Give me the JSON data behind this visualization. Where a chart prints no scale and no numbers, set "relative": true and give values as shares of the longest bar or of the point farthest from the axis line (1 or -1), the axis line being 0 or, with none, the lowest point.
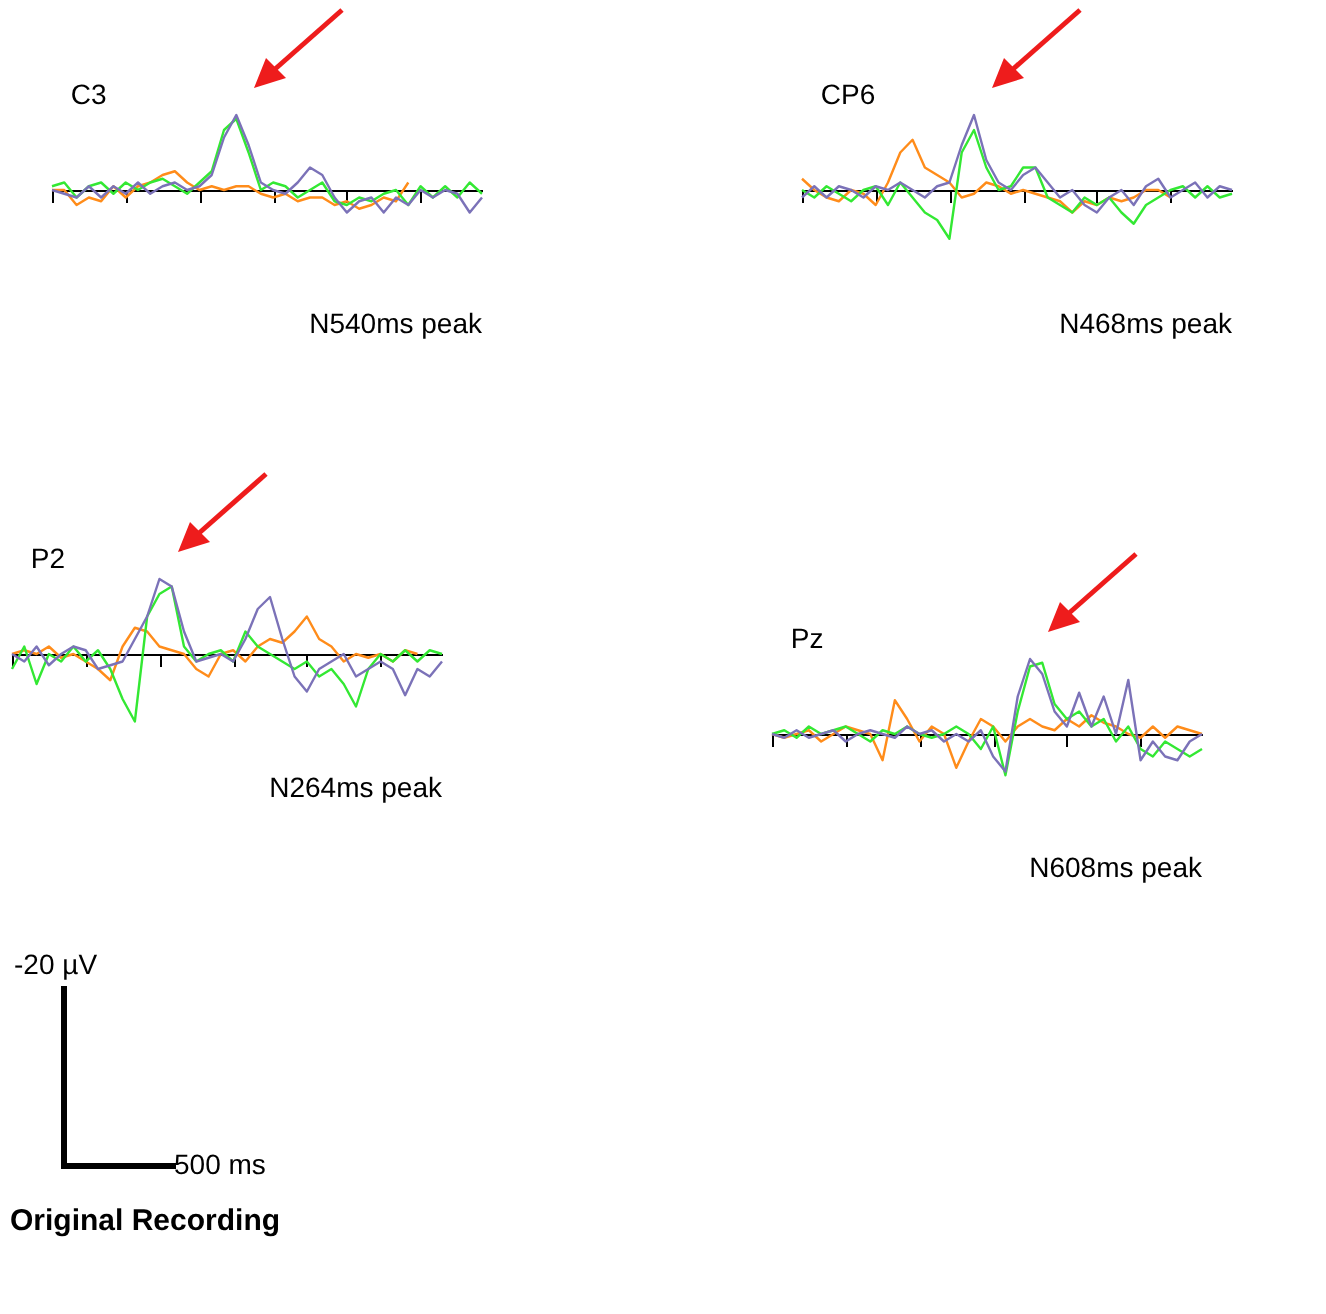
{
  "chart_data": [
    {
      "type": "line",
      "title": "C3",
      "relative": true,
      "annotations": [
        "N540ms peak"
      ],
      "categories": [
        null,
        null,
        null,
        null,
        null,
        null,
        null,
        null,
        null,
        null,
        null,
        null,
        null,
        null,
        null,
        null,
        null,
        null,
        null,
        null,
        null,
        null,
        null,
        null,
        null,
        null,
        null,
        null,
        null,
        null,
        null,
        null,
        null,
        null,
        null,
        null
      ],
      "series": [
        {
          "color": "#ff8c1a",
          "values": [
            0,
            0,
            -0.2,
            -0.1,
            -0.15,
            0.05,
            -0.1,
            0.05,
            0.1,
            0.2,
            0.25,
            0.1,
            0,
            0.05,
            0,
            0.05,
            0.05,
            -0.05,
            -0.1,
            -0.05,
            -0.15,
            -0.1,
            -0.1,
            -0.2,
            -0.15,
            -0.25,
            -0.2,
            -0.1,
            -0.15,
            0.1,
            null,
            null,
            null,
            null,
            null,
            null
          ]
        },
        {
          "color": "#33e833",
          "values": [
            0.05,
            0.1,
            -0.1,
            0.05,
            0.1,
            -0.05,
            0.1,
            0,
            0.1,
            0.15,
            0.05,
            -0.05,
            0.1,
            0.25,
            0.8,
            0.95,
            0.5,
            0,
            0.1,
            0.05,
            -0.1,
            0,
            0.1,
            -0.15,
            -0.2,
            -0.1,
            -0.15,
            -0.05,
            0,
            -0.2,
            0.05,
            -0.1,
            0.05,
            -0.1,
            0.1,
            -0.05
          ]
        },
        {
          "color": "#7b72b8",
          "values": [
            0,
            -0.05,
            -0.1,
            0.05,
            -0.1,
            0.05,
            -0.05,
            0.1,
            -0.05,
            0.05,
            0.1,
            0,
            0.05,
            0.2,
            0.7,
            1,
            0.6,
            0.1,
            0,
            -0.05,
            0.1,
            0.3,
            0.2,
            -0.1,
            -0.3,
            -0.15,
            -0.1,
            -0.3,
            -0.1,
            -0.2,
            0,
            -0.1,
            0,
            -0.05,
            -0.3,
            -0.1
          ]
        }
      ]
    },
    {
      "type": "line",
      "title": "CP6",
      "relative": true,
      "annotations": [
        "N468ms peak"
      ],
      "categories": [
        null,
        null,
        null,
        null,
        null,
        null,
        null,
        null,
        null,
        null,
        null,
        null,
        null,
        null,
        null,
        null,
        null,
        null,
        null,
        null,
        null,
        null,
        null,
        null,
        null,
        null,
        null,
        null,
        null,
        null,
        null,
        null,
        null,
        null,
        null,
        null
      ],
      "series": [
        {
          "color": "#ff8c1a",
          "values": [
            0.15,
            0,
            -0.1,
            -0.15,
            0,
            -0.05,
            -0.2,
            0.1,
            0.5,
            0.67,
            0.3,
            0.2,
            0.1,
            -0.1,
            -0.05,
            0.1,
            0.05,
            -0.05,
            0,
            -0.05,
            -0.1,
            -0.15,
            -0.3,
            -0.15,
            -0.2,
            -0.1,
            -0.15,
            -0.1,
            0,
            0,
            -0.1,
            null,
            null,
            null,
            null,
            null
          ]
        },
        {
          "color": "#33e833",
          "values": [
            0,
            -0.1,
            0.05,
            -0.05,
            -0.15,
            0,
            0.05,
            -0.2,
            0.1,
            -0.1,
            -0.3,
            -0.4,
            -0.65,
            0.5,
            0.8,
            0.3,
            0,
            0.05,
            0.3,
            0.3,
            -0.1,
            -0.2,
            -0.3,
            -0.1,
            -0.2,
            -0.1,
            -0.3,
            -0.45,
            -0.2,
            -0.1,
            0,
            0.05,
            -0.1,
            0.05,
            -0.1,
            -0.05
          ]
        },
        {
          "color": "#7b72b8",
          "values": [
            -0.1,
            0.05,
            -0.1,
            0.05,
            0,
            -0.1,
            0.05,
            0,
            0.1,
            0,
            -0.1,
            0.05,
            0.1,
            0.6,
            1,
            0.4,
            0.1,
            0,
            0.2,
            0.3,
            0.1,
            -0.1,
            0,
            -0.2,
            -0.3,
            -0.1,
            0,
            -0.2,
            0.05,
            0.15,
            -0.1,
            0,
            0.1,
            -0.1,
            0.05,
            0
          ]
        }
      ]
    },
    {
      "type": "line",
      "title": "P2",
      "relative": true,
      "annotations": [
        "N264ms peak"
      ],
      "categories": [
        null,
        null,
        null,
        null,
        null,
        null,
        null,
        null,
        null,
        null,
        null,
        null,
        null,
        null,
        null,
        null,
        null,
        null,
        null,
        null,
        null,
        null,
        null,
        null,
        null,
        null,
        null,
        null,
        null,
        null,
        null,
        null,
        null,
        null,
        null,
        null
      ],
      "series": [
        {
          "color": "#ff8c1a",
          "values": [
            0,
            0.05,
            0,
            0.1,
            -0.05,
            0,
            -0.1,
            -0.2,
            -0.35,
            0.1,
            0.35,
            0.3,
            0.1,
            0.05,
            0,
            -0.2,
            -0.3,
            0,
            0.05,
            -0.1,
            0.1,
            0.2,
            0.15,
            0.3,
            0.5,
            0.2,
            0.1,
            -0.1,
            0,
            -0.05,
            0,
            -0.1,
            0.05,
            0,
            null,
            null
          ]
        },
        {
          "color": "#33e833",
          "values": [
            -0.2,
            0.1,
            -0.4,
            0,
            -0.1,
            0.1,
            -0.1,
            0.05,
            -0.2,
            -0.6,
            -0.9,
            0.5,
            0.8,
            0.9,
            0.1,
            -0.1,
            0,
            0.05,
            -0.1,
            0.3,
            0.1,
            0,
            -0.1,
            -0.2,
            -0.1,
            -0.3,
            -0.2,
            -0.4,
            -0.7,
            -0.2,
            0,
            -0.1,
            0.05,
            -0.1,
            0.05,
            0
          ]
        },
        {
          "color": "#7b72b8",
          "values": [
            0,
            -0.1,
            0.1,
            -0.15,
            0,
            0.1,
            0.05,
            -0.2,
            -0.15,
            -0.1,
            0.2,
            0.5,
            1,
            0.9,
            0.3,
            -0.1,
            -0.05,
            0,
            -0.1,
            0.2,
            0.6,
            0.76,
            0.2,
            -0.3,
            -0.5,
            -0.2,
            -0.1,
            0,
            -0.3,
            -0.2,
            -0.1,
            -0.2,
            -0.55,
            -0.2,
            -0.3,
            -0.1
          ]
        }
      ]
    },
    {
      "type": "line",
      "title": "Pz",
      "relative": true,
      "annotations": [
        "N608ms peak"
      ],
      "categories": [
        null,
        null,
        null,
        null,
        null,
        null,
        null,
        null,
        null,
        null,
        null,
        null,
        null,
        null,
        null,
        null,
        null,
        null,
        null,
        null,
        null,
        null,
        null,
        null,
        null,
        null,
        null,
        null,
        null,
        null,
        null,
        null,
        null,
        null,
        null,
        null
      ],
      "series": [
        {
          "color": "#ff8c1a",
          "values": [
            0,
            -0.05,
            0,
            0.05,
            -0.1,
            0,
            0.1,
            0.05,
            0,
            -0.35,
            0.45,
            0.2,
            -0.1,
            0.1,
            0,
            -0.45,
            -0.1,
            0.2,
            0.1,
            -0.1,
            0.1,
            0.2,
            0.1,
            0.05,
            0.2,
            0.1,
            0.25,
            0.15,
            0.1,
            0,
            -0.05,
            0.1,
            -0.05,
            0.1,
            0.05,
            0
          ]
        },
        {
          "color": "#33e833",
          "values": [
            0,
            0.05,
            -0.05,
            0.1,
            0,
            0.05,
            0.1,
            0,
            -0.1,
            0.05,
            0,
            0.1,
            0,
            -0.05,
            0,
            0.1,
            0,
            -0.2,
            0.1,
            -0.55,
            0.3,
            0.9,
            0.95,
            0.4,
            0.2,
            0.3,
            0.1,
            0.2,
            -0.1,
            0.1,
            -0.2,
            -0.3,
            -0.1,
            -0.2,
            -0.3,
            -0.2
          ]
        },
        {
          "color": "#7b72b8",
          "values": [
            0,
            -0.05,
            0.05,
            -0.05,
            0,
            0.05,
            -0.1,
            0,
            0.05,
            0,
            -0.05,
            0.1,
            0,
            0.05,
            -0.1,
            0,
            -0.1,
            0.05,
            -0.3,
            -0.5,
            0.5,
            1,
            0.8,
            0.3,
            0.1,
            0.55,
            0.1,
            0.5,
            0,
            0.72,
            -0.35,
            -0.1,
            -0.3,
            -0.35,
            -0.1,
            0
          ]
        }
      ]
    },
    {
      "type": "other",
      "title": "Original Recording",
      "annotations": [
        "-20 µV",
        "500 ms"
      ]
    }
  ]
}
